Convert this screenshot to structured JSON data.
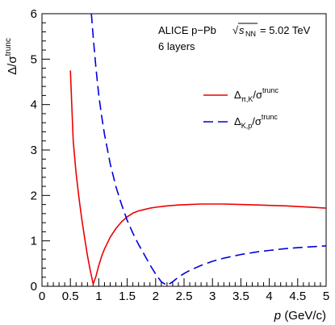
{
  "chart_data": {
    "type": "line",
    "annotations": {
      "line1_main": "ALICE p−Pb",
      "line1_energy": "= 5.02 TeV",
      "line2": "6 layers",
      "energy_symbol": "s",
      "energy_subscript": "NN"
    },
    "xlabel": {
      "var": "p",
      "unit": "(GeV/c)"
    },
    "ylabel": {
      "main": "Δ/σ",
      "sup": "trunc"
    },
    "xlim": [
      0,
      5
    ],
    "ylim": [
      0,
      6
    ],
    "xticks": [
      0,
      0.5,
      1,
      1.5,
      2,
      2.5,
      3,
      3.5,
      4,
      4.5,
      5
    ],
    "xtick_labels": [
      "0",
      "0.5",
      "1",
      "1.5",
      "2",
      "2.5",
      "3",
      "3.5",
      "4",
      "4.5",
      "5"
    ],
    "yticks": [
      0,
      1,
      2,
      3,
      4,
      5,
      6
    ],
    "ytick_labels": [
      "0",
      "1",
      "2",
      "3",
      "4",
      "5",
      "6"
    ],
    "grid": false,
    "legend_position": "right",
    "series": [
      {
        "key": "pik",
        "legend": {
          "main": "Δ",
          "sub": "π,K",
          "tail": "/σ",
          "sup": "trunc"
        },
        "color": "#ee0000",
        "dash": "solid",
        "x": [
          0.5,
          0.55,
          0.6,
          0.65,
          0.7,
          0.75,
          0.8,
          0.85,
          0.9,
          0.95,
          1.0,
          1.05,
          1.1,
          1.2,
          1.3,
          1.4,
          1.5,
          1.6,
          1.7,
          1.8,
          1.9,
          2.0,
          2.2,
          2.4,
          2.6,
          2.8,
          3.0,
          3.2,
          3.5,
          3.8,
          4.0,
          4.3,
          4.6,
          5.0
        ],
        "y": [
          4.75,
          3.2,
          2.5,
          1.95,
          1.48,
          1.07,
          0.68,
          0.35,
          0.05,
          0.22,
          0.46,
          0.66,
          0.82,
          1.08,
          1.27,
          1.42,
          1.53,
          1.61,
          1.66,
          1.69,
          1.72,
          1.74,
          1.77,
          1.79,
          1.8,
          1.81,
          1.81,
          1.81,
          1.8,
          1.79,
          1.78,
          1.77,
          1.75,
          1.72
        ]
      },
      {
        "key": "kp",
        "legend": {
          "main": "Δ",
          "sub": "K,p",
          "tail": "/σ",
          "sup": "trunc"
        },
        "color": "#0000dd",
        "dash": "long-dash",
        "x": [
          0.87,
          0.9,
          0.95,
          1.0,
          1.05,
          1.1,
          1.2,
          1.3,
          1.4,
          1.5,
          1.6,
          1.7,
          1.8,
          1.9,
          2.0,
          2.1,
          2.2,
          2.3,
          2.4,
          2.5,
          2.6,
          2.8,
          3.0,
          3.2,
          3.5,
          3.8,
          4.0,
          4.3,
          4.6,
          5.0
        ],
        "y": [
          6.0,
          5.5,
          4.8,
          4.2,
          3.75,
          3.35,
          2.7,
          2.2,
          1.8,
          1.45,
          1.17,
          0.92,
          0.7,
          0.47,
          0.27,
          0.1,
          0.02,
          0.1,
          0.2,
          0.28,
          0.35,
          0.46,
          0.55,
          0.62,
          0.7,
          0.76,
          0.79,
          0.83,
          0.86,
          0.89
        ]
      }
    ]
  }
}
